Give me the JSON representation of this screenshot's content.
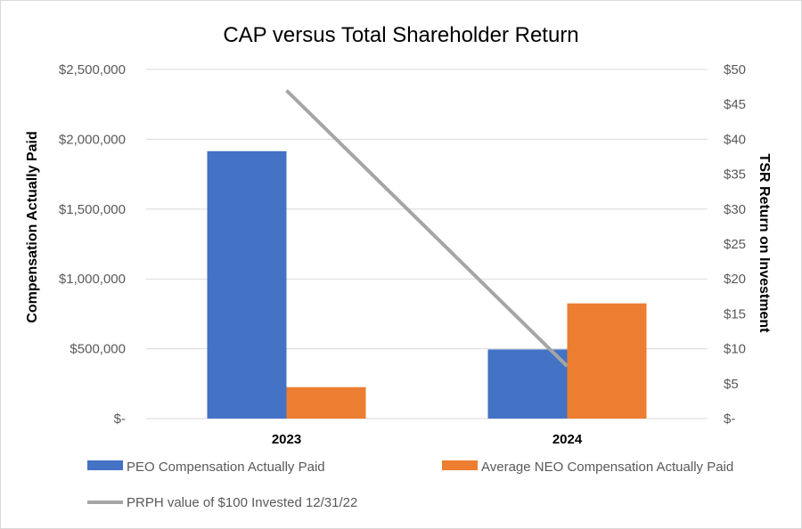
{
  "chart_data": {
    "type": "bar",
    "title": "CAP versus Total Shareholder Return",
    "categories": [
      "2023",
      "2024"
    ],
    "ylabel": "Compensation Actually Paid",
    "y2label": "TSR Return on Investment",
    "ylim": [
      0,
      2500000
    ],
    "y2lim": [
      0,
      50
    ],
    "y_ticks": [
      "$-",
      "$500,000",
      "$1,000,000",
      "$1,500,000",
      "$2,000,000",
      "$2,500,000"
    ],
    "y2_ticks": [
      "$-",
      "$5",
      "$10",
      "$15",
      "$20",
      "$25",
      "$30",
      "$35",
      "$40",
      "$45",
      "$50"
    ],
    "grid": true,
    "legend_position": "bottom",
    "series": [
      {
        "name": "PEO Compensation Actually Paid",
        "type": "bar",
        "axis": "left",
        "values": [
          1915000,
          495000
        ],
        "color": "#4472C4"
      },
      {
        "name": "Average NEO Compensation Actually Paid",
        "type": "bar",
        "axis": "left",
        "values": [
          225000,
          825000
        ],
        "color": "#ED7D31"
      },
      {
        "name": "PRPH value of $100 Invested 12/31/22",
        "type": "line",
        "axis": "right",
        "values": [
          47,
          7.5
        ],
        "color": "#A5A5A5"
      }
    ]
  }
}
